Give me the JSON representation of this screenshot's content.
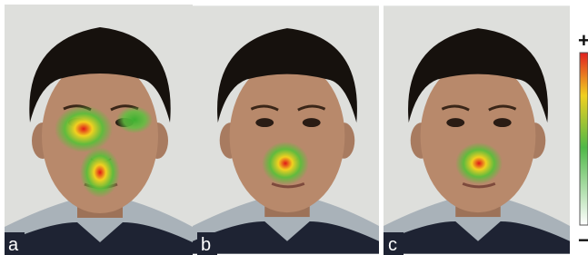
{
  "panels": [
    {
      "label": "a"
    },
    {
      "label": "b"
    },
    {
      "label": "c"
    }
  ],
  "colorbar": {
    "top": "+",
    "bottom": "−"
  }
}
